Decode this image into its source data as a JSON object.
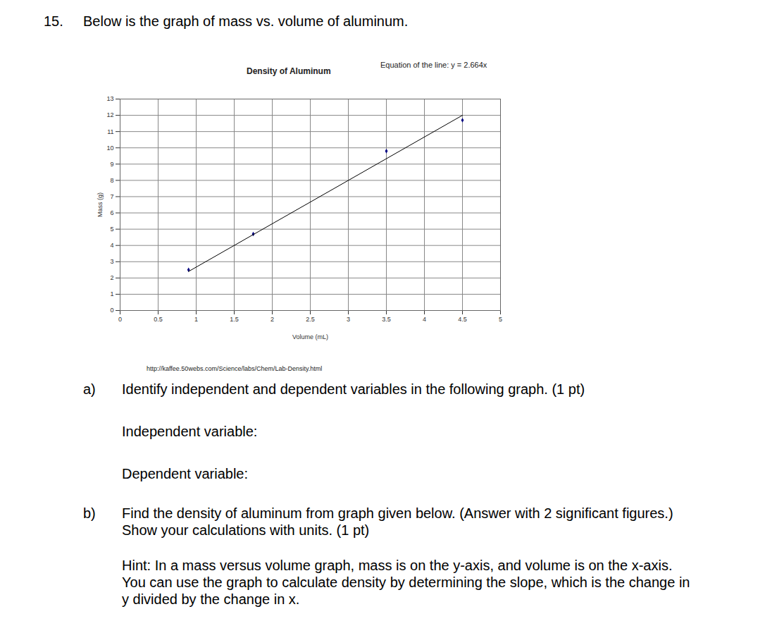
{
  "chart_data": {
    "type": "scatter",
    "title": "Density of Aluminum",
    "annotation": "Equation of the line: y = 2.664x",
    "x_label": "Volume (mL)",
    "y_label": "Mass (g)",
    "xlim": [
      0,
      5
    ],
    "xticks": [
      0,
      0.5,
      1,
      1.5,
      2,
      2.5,
      3,
      3.5,
      4,
      4.5,
      5
    ],
    "ylim": [
      0,
      13
    ],
    "yticks": [
      0,
      1,
      2,
      3,
      4,
      5,
      6,
      7,
      8,
      9,
      10,
      11,
      12,
      13
    ],
    "grid": true,
    "series": [
      {
        "type": "scatter",
        "x": [
          0.9,
          1.75,
          3.5,
          4.5
        ],
        "values": [
          2.5,
          4.7,
          9.8,
          11.7
        ],
        "color": "#000080",
        "marker": "diamond"
      },
      {
        "type": "line",
        "x": [
          0.9,
          4.5
        ],
        "values": [
          2.4,
          12.0
        ],
        "color": "#000000",
        "line_style": "solid"
      }
    ]
  },
  "document": {
    "number": "15.",
    "prompt": "Below is the graph of mass vs. volume of aluminum.",
    "source": "http://kaffee.50webs.com/Science/labs/Chem/Lab-Density.html",
    "questions": [
      {
        "label": "a)",
        "text": "Identify independent and dependent variables in the following graph. (1 pt)",
        "blanks": [
          "Independent variable:",
          "Dependent variable:"
        ]
      },
      {
        "label": "b)",
        "text": "Find the density of aluminum from graph given below.  (Answer with 2 significant figures.)  Show your calculations with units. (1 pt)",
        "hint": "Hint: In a mass versus volume graph, mass is on the y-axis, and volume is on the x-axis. You can use the graph to calculate density by determining the slope, which is the change in y divided by the change in x."
      }
    ]
  }
}
